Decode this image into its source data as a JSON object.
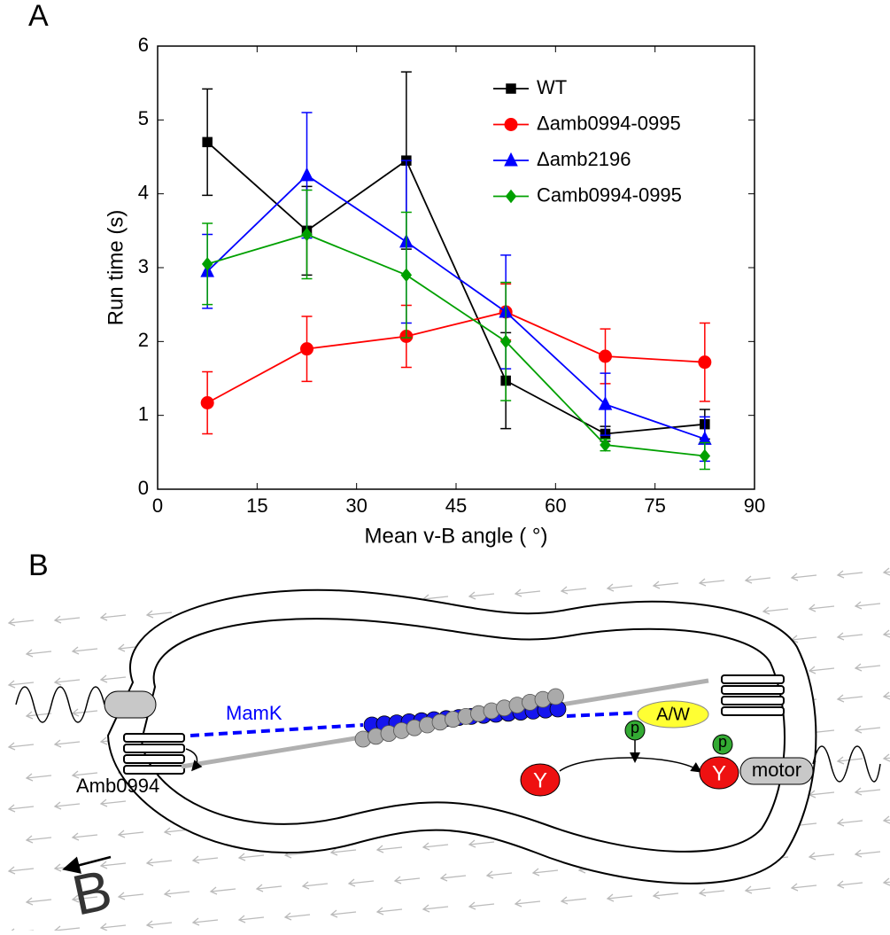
{
  "panel_labels": [
    "A",
    "B"
  ],
  "chart_data": {
    "type": "line",
    "x_label": "Mean v-B angle ( °)",
    "y_label": "Run time (s)",
    "x": [
      7.5,
      22.5,
      37.5,
      52.5,
      67.5,
      82.5
    ],
    "xlim": [
      0,
      90
    ],
    "xticks": [
      0,
      15,
      30,
      45,
      60,
      75,
      90
    ],
    "ylim": [
      0,
      6
    ],
    "yticks": [
      0,
      1,
      2,
      3,
      4,
      5,
      6
    ],
    "legend": "upper right",
    "grid": false,
    "series": [
      {
        "name": "WT",
        "color": "#000000",
        "marker": "square",
        "values": [
          4.7,
          3.5,
          4.45,
          1.47,
          0.75,
          0.88
        ],
        "errors": [
          0.72,
          0.6,
          1.2,
          0.65,
          0.1,
          0.2
        ]
      },
      {
        "name": "Δamb0994-0995",
        "color": "#ff0000",
        "marker": "circle",
        "values": [
          1.17,
          1.9,
          2.07,
          2.4,
          1.8,
          1.72
        ],
        "errors": [
          0.42,
          0.44,
          0.42,
          0.38,
          0.37,
          0.53
        ]
      },
      {
        "name": "Δamb2196",
        "color": "#0000ff",
        "marker": "triangle",
        "values": [
          2.95,
          4.25,
          3.35,
          2.4,
          1.15,
          0.68
        ],
        "errors": [
          0.5,
          0.85,
          1.1,
          0.77,
          0.42,
          0.3
        ]
      },
      {
        "name": "Camb0994-0995",
        "color": "#00a000",
        "marker": "diamond",
        "values": [
          3.05,
          3.45,
          2.9,
          2.0,
          0.6,
          0.45
        ],
        "errors": [
          0.55,
          0.6,
          0.85,
          0.8,
          0.08,
          0.18
        ]
      }
    ]
  },
  "diagram": {
    "mamk": "MamK",
    "amb0994": "Amb0994",
    "aw": "A/W",
    "p1": "p",
    "p2": "p",
    "y1": "Y",
    "y2": "Y",
    "motor": "motor",
    "field": "B"
  }
}
